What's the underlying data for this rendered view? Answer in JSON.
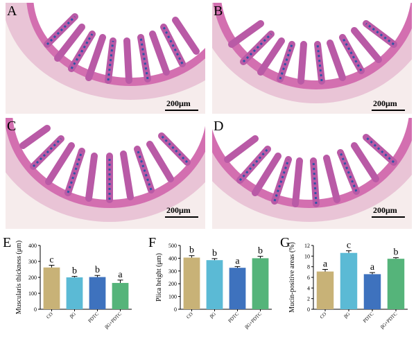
{
  "micrographs": [
    {
      "label": "A",
      "scale_text": "200μm"
    },
    {
      "label": "B",
      "scale_text": "200μm"
    },
    {
      "label": "C",
      "scale_text": "200μm"
    },
    {
      "label": "D",
      "scale_text": "200μm"
    }
  ],
  "colors": {
    "CO": "#c8b277",
    "βG": "#5bbad5",
    "PDTC": "#3e72be",
    "βG+PDTC": "#55b47a"
  },
  "chart_data": [
    {
      "panel": "E",
      "type": "bar",
      "categories": [
        "CO",
        "βG",
        "PDTC",
        "βG+PDTC"
      ],
      "values": [
        262,
        200,
        202,
        165
      ],
      "errors": [
        14,
        6,
        10,
        18
      ],
      "letters": [
        "c",
        "b",
        "b",
        "a"
      ],
      "ylabel": "Muscularis thickness (μm)",
      "ylim": [
        0,
        400
      ],
      "yticks": [
        0,
        100,
        200,
        300,
        400
      ]
    },
    {
      "panel": "F",
      "type": "bar",
      "categories": [
        "CO",
        "βG",
        "PDTC",
        "βG+PDTC"
      ],
      "values": [
        405,
        385,
        325,
        400
      ],
      "errors": [
        15,
        12,
        10,
        15
      ],
      "letters": [
        "b",
        "b",
        "a",
        "b"
      ],
      "ylabel": "Plica height (μm)",
      "ylim": [
        0,
        500
      ],
      "yticks": [
        0,
        100,
        200,
        300,
        400,
        500
      ]
    },
    {
      "panel": "G",
      "type": "bar",
      "categories": [
        "CO",
        "βG",
        "PDTC",
        "βG+PDTC"
      ],
      "values": [
        7.1,
        10.6,
        6.6,
        9.5
      ],
      "errors": [
        0.4,
        0.4,
        0.3,
        0.2
      ],
      "letters": [
        "a",
        "c",
        "a",
        "b"
      ],
      "ylabel": "Mucin-positive areas (%)",
      "ylim": [
        0,
        12
      ],
      "yticks": [
        0,
        2,
        4,
        6,
        8,
        10,
        12
      ]
    }
  ]
}
